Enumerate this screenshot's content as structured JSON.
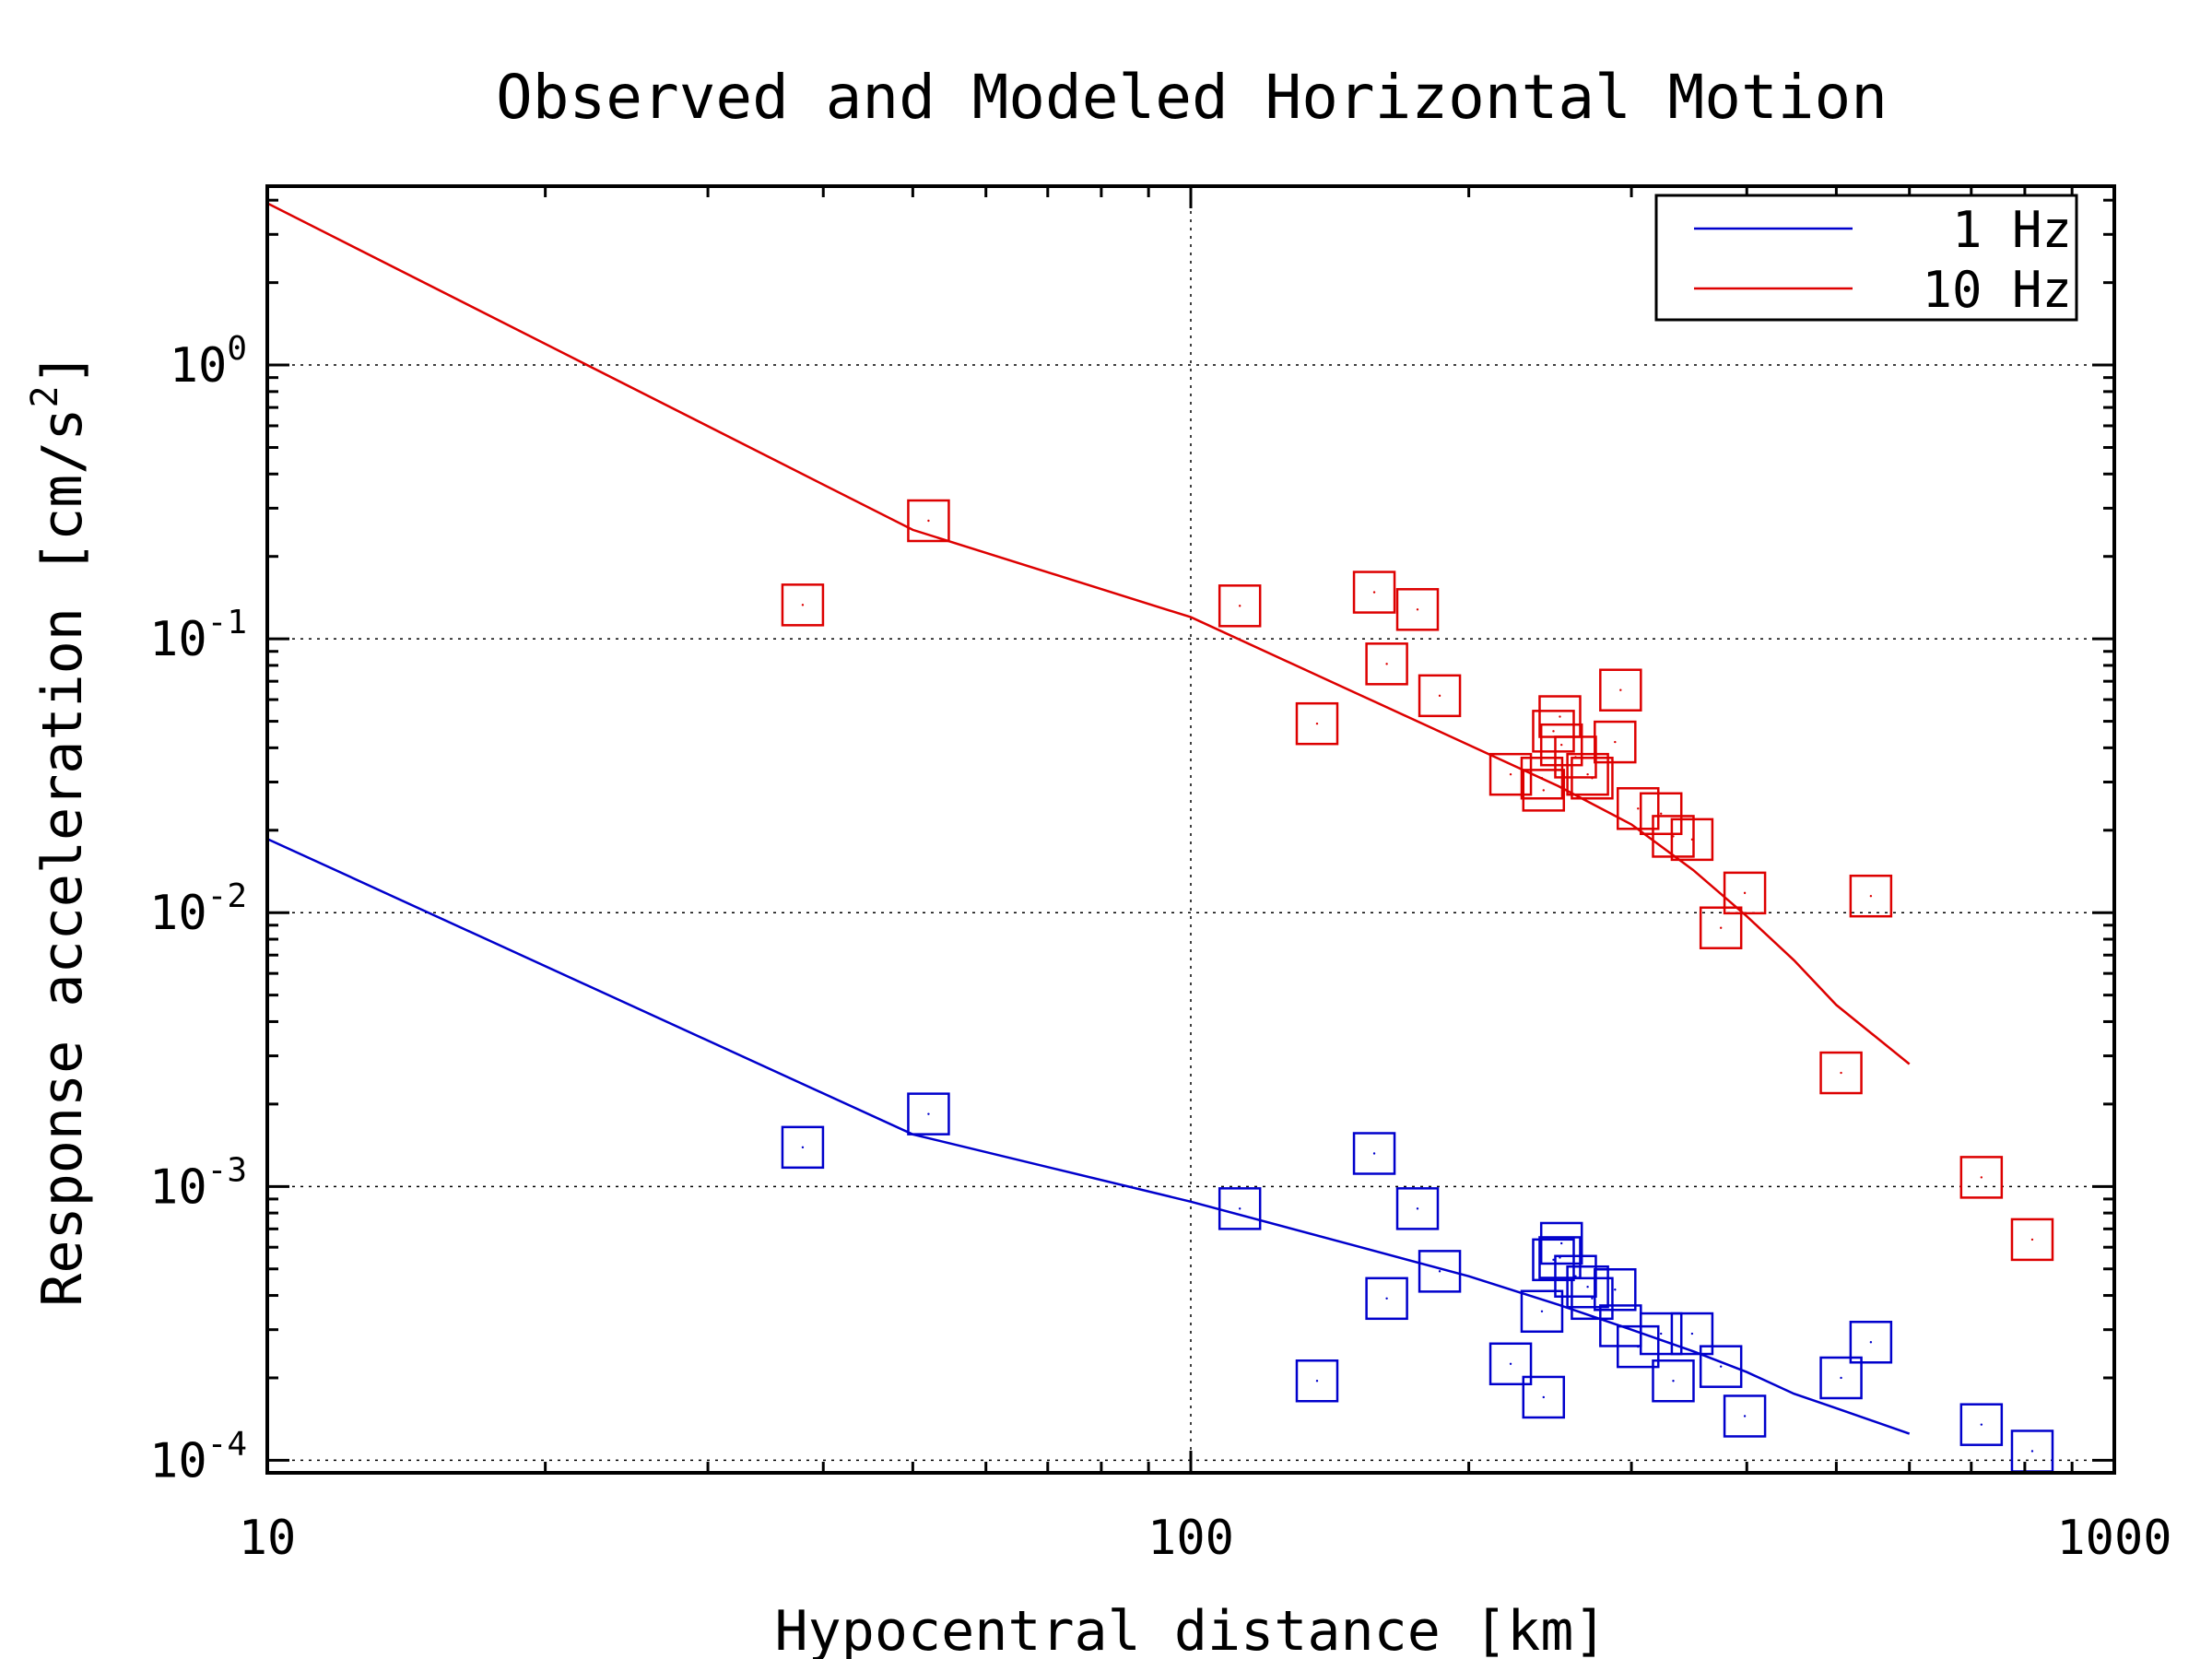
{
  "chart_data": {
    "type": "scatter",
    "title": "Observed and Modeled Horizontal Motion",
    "xlabel": "Hypocentral distance [km]",
    "ylabel": "Response acceleration [cm/s",
    "ylabel_superscript": "2",
    "ylabel_suffix": "]",
    "xscale": "log",
    "yscale": "log",
    "xlim": [
      10,
      1000
    ],
    "ylim": [
      9e-05,
      4.5
    ],
    "x_ticks": [
      {
        "value": 10,
        "label": "10"
      },
      {
        "value": 100,
        "label": "100"
      },
      {
        "value": 1000,
        "label": "1000"
      }
    ],
    "y_ticks": [
      {
        "value": 0.0001,
        "base": "10",
        "exp": "-4"
      },
      {
        "value": 0.001,
        "base": "10",
        "exp": "-3"
      },
      {
        "value": 0.01,
        "base": "10",
        "exp": "-2"
      },
      {
        "value": 0.1,
        "base": "10",
        "exp": "-1"
      },
      {
        "value": 1,
        "base": "10",
        "exp": "0"
      }
    ],
    "grid": true,
    "legend_position": "top-right",
    "series": [
      {
        "name": "1 Hz",
        "color": "#0000cc",
        "model_line": {
          "x": [
            10,
            50,
            100,
            150,
            200,
            250,
            300,
            350,
            400,
            450,
            500,
            600
          ],
          "y": [
            0.0186,
            0.00155,
            0.00088,
            0.00061,
            0.00047,
            0.00037,
            0.0003,
            0.00025,
            0.00021,
            0.000175,
            0.000155,
            0.000125
          ]
        },
        "observed_points": {
          "x": [
            38,
            52,
            113,
            137,
            158,
            163,
            176,
            186,
            222,
            240,
            241,
            247,
            251,
            252,
            261,
            269,
            272,
            288,
            292,
            305,
            323,
            333,
            349,
            375,
            398,
            506,
            545,
            718,
            815
          ],
          "y": [
            0.00139,
            0.00184,
            0.00083,
            0.000195,
            0.00132,
            0.00039,
            0.00083,
            0.00049,
            0.000225,
            0.00035,
            0.00017,
            0.00054,
            0.00055,
            0.00062,
            0.00047,
            0.00043,
            0.00039,
            0.00042,
            0.00031,
            0.00026,
            0.00029,
            0.000195,
            0.00029,
            0.00022,
            0.000145,
            0.0002,
            0.00027,
            0.000135,
            0.000108
          ]
        }
      },
      {
        "name": "10 Hz",
        "color": "#dd0000",
        "model_line": {
          "x": [
            10,
            50,
            100,
            150,
            200,
            250,
            300,
            350,
            400,
            450,
            500,
            600
          ],
          "y": [
            3.9,
            0.25,
            0.12,
            0.064,
            0.041,
            0.029,
            0.021,
            0.0143,
            0.0097,
            0.0067,
            0.0046,
            0.0028
          ]
        },
        "observed_points": {
          "x": [
            38,
            52,
            113,
            137,
            158,
            163,
            176,
            186,
            222,
            240,
            241,
            247,
            251,
            252,
            261,
            269,
            272,
            288,
            292,
            305,
            323,
            333,
            349,
            375,
            398,
            506,
            545,
            718,
            815
          ],
          "y": [
            0.133,
            0.27,
            0.132,
            0.049,
            0.148,
            0.081,
            0.128,
            0.062,
            0.032,
            0.031,
            0.028,
            0.046,
            0.052,
            0.041,
            0.037,
            0.032,
            0.031,
            0.042,
            0.065,
            0.024,
            0.023,
            0.019,
            0.0185,
            0.0088,
            0.0118,
            0.0026,
            0.0115,
            0.00108,
            0.00064
          ]
        }
      }
    ]
  }
}
